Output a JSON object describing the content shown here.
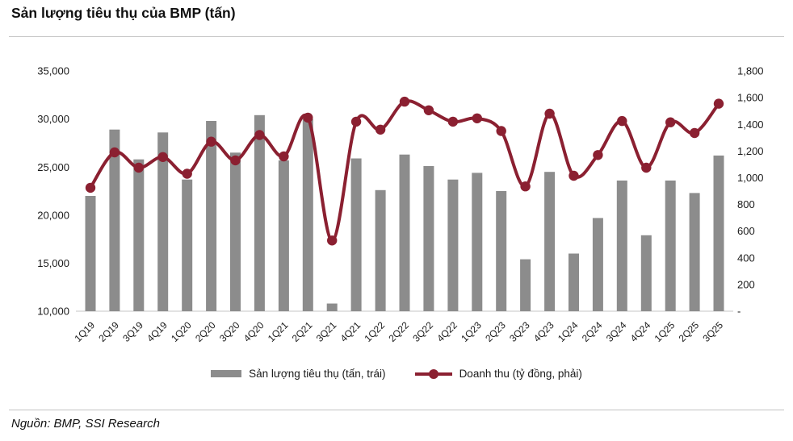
{
  "title": "Sản lượng tiêu thụ của BMP (tấn)",
  "footer": {
    "source": "Nguồn: BMP, SSI Research"
  },
  "legend": {
    "bar_label": "Sản lượng tiêu thụ (tấn, trái)",
    "line_label": "Doanh thu (tỷ đồng, phải)"
  },
  "colors": {
    "bar": "#8C8C8C",
    "line": "#8B2031",
    "baseline": "#DADADA",
    "axis_text": "#1A1A1A"
  },
  "chart_data": {
    "type": "bar",
    "subtype": "combo bar+line, dual axis",
    "title": "Sản lượng tiêu thụ của BMP (tấn)",
    "grid": false,
    "legend_position": "bottom",
    "categories": [
      "1Q19",
      "2Q19",
      "3Q19",
      "4Q19",
      "1Q20",
      "2Q20",
      "3Q20",
      "4Q20",
      "1Q21",
      "2Q21",
      "3Q21",
      "4Q21",
      "1Q22",
      "2Q22",
      "3Q22",
      "4Q22",
      "1Q23",
      "2Q23",
      "3Q23",
      "4Q23",
      "1Q24",
      "2Q24",
      "3Q24",
      "4Q24",
      "1Q25",
      "2Q25",
      "3Q25"
    ],
    "series": [
      {
        "name": "Sản lượng tiêu thụ (tấn, trái)",
        "type": "bar",
        "axis": "left",
        "values": [
          22000,
          28900,
          25800,
          28600,
          23700,
          29800,
          26500,
          30400,
          25700,
          30000,
          10800,
          25900,
          22600,
          26300,
          25100,
          23700,
          24400,
          22500,
          15400,
          24500,
          16000,
          19700,
          23600,
          17900,
          23600,
          22300,
          26200
        ]
      },
      {
        "name": "Doanh thu (tỷ đồng, phải)",
        "type": "line",
        "axis": "right",
        "values": [
          925,
          1190,
          1075,
          1155,
          1030,
          1270,
          1130,
          1320,
          1160,
          1450,
          530,
          1420,
          1360,
          1570,
          1505,
          1420,
          1445,
          1350,
          935,
          1480,
          1015,
          1170,
          1425,
          1075,
          1415,
          1335,
          1555
        ]
      }
    ],
    "left_axis": {
      "min": 10000,
      "max": 35000,
      "step": 5000,
      "ticks": [
        {
          "value": 35000,
          "label": "35,000"
        },
        {
          "value": 30000,
          "label": "30,000"
        },
        {
          "value": 25000,
          "label": "25,000"
        },
        {
          "value": 20000,
          "label": "20,000"
        },
        {
          "value": 15000,
          "label": "15,000"
        },
        {
          "value": 10000,
          "label": "10,000"
        }
      ]
    },
    "right_axis": {
      "min": 0,
      "max": 1800,
      "step": 200,
      "ticks": [
        {
          "value": 1800,
          "label": "1,800"
        },
        {
          "value": 1600,
          "label": "1,600"
        },
        {
          "value": 1400,
          "label": "1,400"
        },
        {
          "value": 1200,
          "label": "1,200"
        },
        {
          "value": 1000,
          "label": "1,000"
        },
        {
          "value": 800,
          "label": "800"
        },
        {
          "value": 600,
          "label": "600"
        },
        {
          "value": 400,
          "label": "400"
        },
        {
          "value": 200,
          "label": "200"
        },
        {
          "value": 0,
          "label": "-"
        }
      ]
    }
  }
}
